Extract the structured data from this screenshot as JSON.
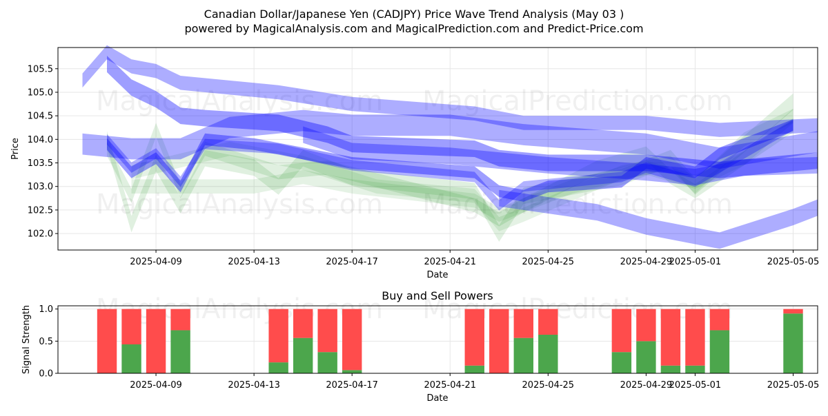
{
  "title_line1": "Canadian Dollar/Japanese Yen (CADJPY) Price Wave Trend Analysis (May 03 )",
  "title_line2": "powered by MagicalAnalysis.com and MagicalPrediction.com and Predict-Price.com",
  "watermarks": [
    "MagicalAnalysis.com",
    "MagicalPrediction.com"
  ],
  "colors": {
    "band_blue": "#0000ff",
    "band_green": "#008000",
    "buy": "#4ca64c",
    "sell": "#ff4c4c",
    "grid": "#e6e6e6"
  },
  "chart_data": [
    {
      "type": "area",
      "title": "",
      "xlabel": "Date",
      "ylabel": "Price",
      "x_tick_labels": [
        "2025-04-09",
        "2025-04-13",
        "2025-04-17",
        "2025-04-21",
        "2025-04-25",
        "2025-04-29",
        "2025-05-01",
        "2025-05-05"
      ],
      "x_ticks": [
        "2025-04-09",
        "2025-04-13",
        "2025-04-17",
        "2025-04-21",
        "2025-04-25",
        "2025-04-29",
        "2025-05-01",
        "2025-05-05"
      ],
      "y_ticks": [
        102.0,
        102.5,
        103.0,
        103.5,
        104.0,
        104.5,
        105.0,
        105.5
      ],
      "xlim": [
        "2025-04-05",
        "2025-05-06"
      ],
      "ylim": [
        101.65,
        105.95
      ],
      "grid": true,
      "series": [
        {
          "color": "blue",
          "opacity": 0.32,
          "points": [
            [
              "2025-04-06",
              105.25,
              0.3
            ],
            [
              "2025-04-07",
              105.85,
              0.3
            ],
            [
              "2025-04-08",
              105.55,
              0.3
            ],
            [
              "2025-04-09",
              105.45,
              0.3
            ],
            [
              "2025-04-10",
              105.2,
              0.3
            ],
            [
              "2025-04-12",
              105.1,
              0.3
            ],
            [
              "2025-04-14",
              105.0,
              0.3
            ],
            [
              "2025-04-17",
              104.75,
              0.3
            ],
            [
              "2025-04-22",
              104.55,
              0.3
            ],
            [
              "2025-04-24",
              104.35,
              0.3
            ],
            [
              "2025-04-29",
              104.35,
              0.3
            ],
            [
              "2025-05-01",
              104.25,
              0.3
            ],
            [
              "2025-05-02",
              104.2,
              0.3
            ],
            [
              "2025-05-06",
              104.3,
              0.3
            ]
          ]
        },
        {
          "color": "blue",
          "opacity": 0.32,
          "points": [
            [
              "2025-04-06",
              103.9,
              0.45
            ],
            [
              "2025-04-08",
              103.8,
              0.45
            ],
            [
              "2025-04-10",
              103.8,
              0.45
            ],
            [
              "2025-04-12",
              104.25,
              0.45
            ],
            [
              "2025-04-15",
              104.4,
              0.45
            ],
            [
              "2025-04-17",
              104.3,
              0.45
            ],
            [
              "2025-04-21",
              104.3,
              0.45
            ],
            [
              "2025-04-24",
              104.1,
              0.45
            ],
            [
              "2025-04-29",
              103.9,
              0.45
            ],
            [
              "2025-05-02",
              103.6,
              0.45
            ],
            [
              "2025-05-06",
              103.95,
              0.45
            ]
          ]
        },
        {
          "color": "blue",
          "opacity": 0.38,
          "points": [
            [
              "2025-04-07",
              105.6,
              0.35
            ],
            [
              "2025-04-08",
              105.1,
              0.35
            ],
            [
              "2025-04-09",
              104.85,
              0.35
            ],
            [
              "2025-04-10",
              104.5,
              0.35
            ],
            [
              "2025-04-11",
              104.45,
              0.35
            ],
            [
              "2025-04-14",
              104.35,
              0.35
            ],
            [
              "2025-04-16",
              104.1,
              0.35
            ],
            [
              "2025-04-17",
              103.9,
              0.35
            ],
            [
              "2025-04-22",
              103.8,
              0.35
            ],
            [
              "2025-04-23",
              103.6,
              0.35
            ],
            [
              "2025-04-25",
              103.5,
              0.35
            ],
            [
              "2025-04-29",
              103.5,
              0.35
            ],
            [
              "2025-05-02",
              103.35,
              0.35
            ],
            [
              "2025-05-06",
              103.55,
              0.35
            ]
          ]
        },
        {
          "color": "blue",
          "opacity": 0.38,
          "points": [
            [
              "2025-04-07",
              103.9,
              0.25
            ],
            [
              "2025-04-08",
              103.3,
              0.25
            ],
            [
              "2025-04-09",
              103.6,
              0.25
            ],
            [
              "2025-04-10",
              103.0,
              0.25
            ],
            [
              "2025-04-11",
              104.0,
              0.25
            ],
            [
              "2025-04-13",
              103.9,
              0.25
            ],
            [
              "2025-04-15",
              103.7,
              0.25
            ],
            [
              "2025-04-17",
              103.5,
              0.25
            ],
            [
              "2025-04-22",
              103.3,
              0.25
            ],
            [
              "2025-04-23",
              102.9,
              0.25
            ],
            [
              "2025-04-24",
              102.8,
              0.25
            ],
            [
              "2025-04-25",
              103.0,
              0.25
            ],
            [
              "2025-04-28",
              103.1,
              0.25
            ],
            [
              "2025-04-29",
              103.5,
              0.25
            ],
            [
              "2025-05-01",
              103.3,
              0.25
            ],
            [
              "2025-05-02",
              103.7,
              0.25
            ],
            [
              "2025-05-05",
              104.3,
              0.25
            ]
          ]
        },
        {
          "color": "blue",
          "opacity": 0.3,
          "points": [
            [
              "2025-04-07",
              104.0,
              0.22
            ],
            [
              "2025-04-08",
              103.4,
              0.22
            ],
            [
              "2025-04-09",
              103.7,
              0.22
            ],
            [
              "2025-04-10",
              103.1,
              0.22
            ],
            [
              "2025-04-11",
              103.9,
              0.22
            ],
            [
              "2025-04-14",
              103.8,
              0.22
            ],
            [
              "2025-04-17",
              103.45,
              0.22
            ],
            [
              "2025-04-22",
              103.2,
              0.22
            ],
            [
              "2025-04-23",
              102.6,
              0.22
            ],
            [
              "2025-04-24",
              103.0,
              0.22
            ],
            [
              "2025-04-28",
              103.2,
              0.22
            ],
            [
              "2025-04-29",
              103.4,
              0.22
            ],
            [
              "2025-05-01",
              103.1,
              0.22
            ],
            [
              "2025-05-05",
              104.3,
              0.22
            ]
          ]
        },
        {
          "color": "blue",
          "opacity": 0.32,
          "points": [
            [
              "2025-04-15",
              104.1,
              0.35
            ],
            [
              "2025-04-17",
              103.75,
              0.35
            ],
            [
              "2025-04-21",
              103.65,
              0.35
            ],
            [
              "2025-04-25",
              103.45,
              0.35
            ],
            [
              "2025-04-29",
              103.3,
              0.35
            ],
            [
              "2025-05-01",
              103.2,
              0.35
            ],
            [
              "2025-05-03",
              103.4,
              0.35
            ],
            [
              "2025-05-06",
              103.45,
              0.35
            ]
          ]
        },
        {
          "color": "blue",
          "opacity": 0.32,
          "points": [
            [
              "2025-04-23",
              102.75,
              0.35
            ],
            [
              "2025-04-25",
              102.6,
              0.35
            ],
            [
              "2025-04-27",
              102.45,
              0.35
            ],
            [
              "2025-04-29",
              102.15,
              0.35
            ],
            [
              "2025-05-02",
              101.85,
              0.35
            ],
            [
              "2025-05-05",
              102.35,
              0.35
            ],
            [
              "2025-05-06",
              102.55,
              0.35
            ]
          ]
        },
        {
          "color": "green",
          "opacity": 0.12,
          "points": [
            [
              "2025-04-07",
              104.0,
              0.35
            ],
            [
              "2025-04-08",
              102.2,
              0.35
            ],
            [
              "2025-04-09",
              103.5,
              0.35
            ],
            [
              "2025-04-10",
              102.6,
              0.35
            ],
            [
              "2025-04-11",
              103.6,
              0.35
            ],
            [
              "2025-04-13",
              103.4,
              0.35
            ],
            [
              "2025-04-14",
              103.0,
              0.35
            ],
            [
              "2025-04-15",
              103.6,
              0.35
            ],
            [
              "2025-04-17",
              103.2,
              0.35
            ],
            [
              "2025-04-22",
              102.9,
              0.35
            ],
            [
              "2025-04-23",
              102.0,
              0.35
            ],
            [
              "2025-04-24",
              102.8,
              0.35
            ],
            [
              "2025-04-28",
              103.2,
              0.35
            ],
            [
              "2025-04-30",
              103.6,
              0.35
            ],
            [
              "2025-05-01",
              103.0,
              0.35
            ],
            [
              "2025-05-05",
              104.8,
              0.35
            ]
          ]
        },
        {
          "color": "green",
          "opacity": 0.12,
          "points": [
            [
              "2025-04-07",
              103.8,
              0.3
            ],
            [
              "2025-04-08",
              102.8,
              0.3
            ],
            [
              "2025-04-09",
              104.2,
              0.3
            ],
            [
              "2025-04-10",
              102.9,
              0.3
            ],
            [
              "2025-04-11",
              103.8,
              0.3
            ],
            [
              "2025-04-14",
              103.3,
              0.3
            ],
            [
              "2025-04-16",
              103.4,
              0.3
            ],
            [
              "2025-04-22",
              102.6,
              0.3
            ],
            [
              "2025-04-23",
              102.3,
              0.3
            ],
            [
              "2025-04-24",
              102.6,
              0.3
            ],
            [
              "2025-04-27",
              103.4,
              0.3
            ],
            [
              "2025-04-29",
              103.7,
              0.3
            ],
            [
              "2025-04-30",
              103.2,
              0.3
            ],
            [
              "2025-05-01",
              102.9,
              0.3
            ],
            [
              "2025-05-05",
              104.3,
              0.3
            ]
          ]
        },
        {
          "color": "green",
          "opacity": 0.1,
          "points": [
            [
              "2025-04-08",
              103.0,
              0.3
            ],
            [
              "2025-04-13",
              103.0,
              0.3
            ],
            [
              "2025-04-15",
              103.2,
              0.3
            ],
            [
              "2025-04-17",
              103.0,
              0.3
            ],
            [
              "2025-04-22",
              102.7,
              0.3
            ],
            [
              "2025-04-23",
              102.4,
              0.3
            ],
            [
              "2025-04-26",
              103.0,
              0.3
            ],
            [
              "2025-04-29",
              103.4,
              0.3
            ],
            [
              "2025-05-01",
              103.1,
              0.3
            ],
            [
              "2025-05-03",
              103.6,
              0.3
            ],
            [
              "2025-05-05",
              104.5,
              0.3
            ]
          ]
        },
        {
          "color": "green",
          "opacity": 0.1,
          "points": [
            [
              "2025-04-08",
              103.3,
              0.3
            ],
            [
              "2025-04-12",
              103.8,
              0.3
            ],
            [
              "2025-04-15",
              103.5,
              0.3
            ],
            [
              "2025-04-18",
              103.0,
              0.3
            ],
            [
              "2025-04-22",
              102.8,
              0.3
            ],
            [
              "2025-04-23",
              102.2,
              0.3
            ],
            [
              "2025-04-24",
              102.4,
              0.3
            ],
            [
              "2025-04-28",
              103.3,
              0.3
            ],
            [
              "2025-04-30",
              103.5,
              0.3
            ],
            [
              "2025-05-01",
              103.0,
              0.3
            ],
            [
              "2025-05-03",
              104.0,
              0.3
            ],
            [
              "2025-05-05",
              104.5,
              0.3
            ]
          ]
        }
      ]
    },
    {
      "type": "bar",
      "title": "Buy and Sell Powers",
      "xlabel": "Date",
      "ylabel": "Signal Strength",
      "x_tick_labels": [
        "2025-04-09",
        "2025-04-13",
        "2025-04-17",
        "2025-04-21",
        "2025-04-25",
        "2025-04-29",
        "2025-05-01",
        "2025-05-05"
      ],
      "x_ticks": [
        "2025-04-09",
        "2025-04-13",
        "2025-04-17",
        "2025-04-21",
        "2025-04-25",
        "2025-04-29",
        "2025-05-01",
        "2025-05-05"
      ],
      "y_ticks": [
        0.0,
        0.5,
        1.0
      ],
      "ylim": [
        0,
        1.05
      ],
      "grid": true,
      "stacked": true,
      "categories": [
        "2025-04-07",
        "2025-04-08",
        "2025-04-09",
        "2025-04-10",
        "2025-04-14",
        "2025-04-15",
        "2025-04-16",
        "2025-04-17",
        "2025-04-22",
        "2025-04-23",
        "2025-04-24",
        "2025-04-25",
        "2025-04-28",
        "2025-04-29",
        "2025-04-30",
        "2025-05-01",
        "2025-05-02",
        "2025-05-05"
      ],
      "buy": [
        0.0,
        0.45,
        0.0,
        0.67,
        0.17,
        0.55,
        0.33,
        0.05,
        0.12,
        0.0,
        0.55,
        0.6,
        0.33,
        0.5,
        0.12,
        0.12,
        0.67,
        0.93
      ],
      "sell": [
        1.0,
        0.55,
        1.0,
        0.33,
        0.83,
        0.45,
        0.67,
        0.95,
        0.88,
        1.0,
        0.45,
        0.4,
        0.67,
        0.5,
        0.88,
        0.88,
        0.33,
        0.07
      ]
    }
  ]
}
